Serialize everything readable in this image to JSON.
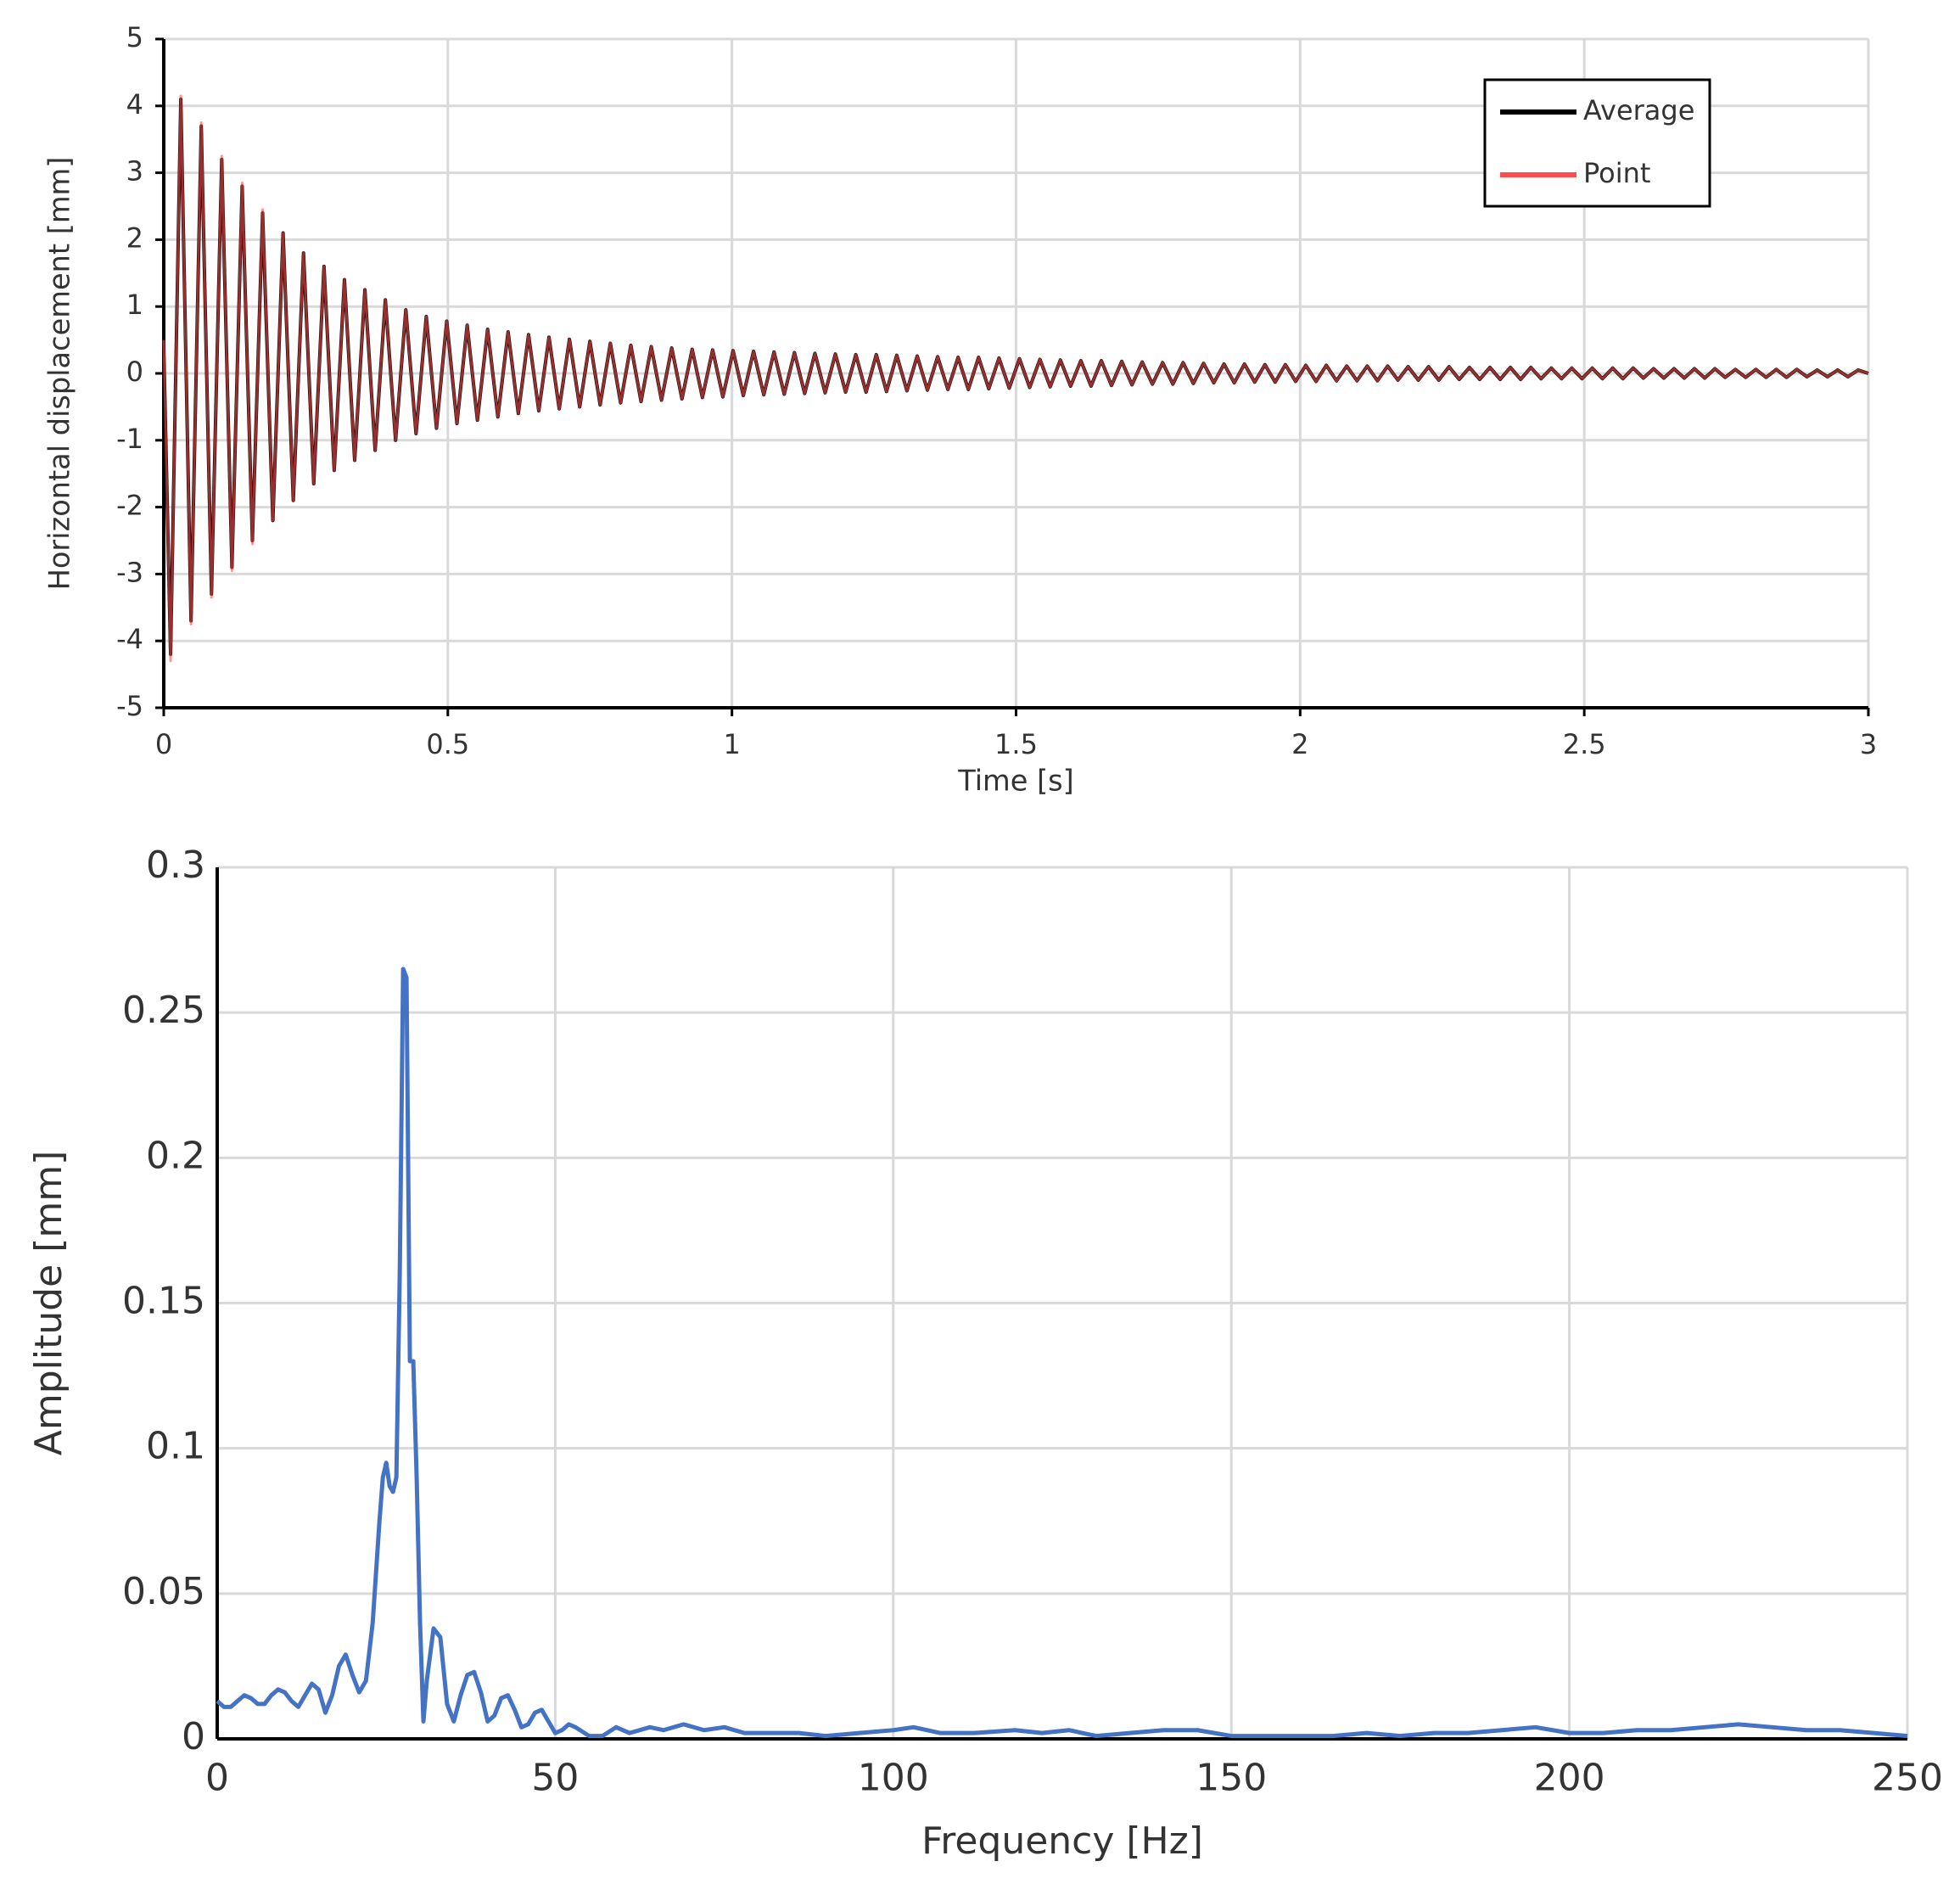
{
  "chart_data": [
    {
      "type": "line",
      "x_label": "Time [s]",
      "y_label": "Horizontal displacement [mm]",
      "xlim": [
        0,
        3
      ],
      "ylim": [
        -5,
        5
      ],
      "xticks": [
        0,
        0.5,
        1,
        1.5,
        2,
        2.5,
        3
      ],
      "yticks": [
        -5,
        -4,
        -3,
        -2,
        -1,
        0,
        1,
        2,
        3,
        4,
        5
      ],
      "grid": true,
      "legend": "upper right",
      "x": [
        0,
        0.012,
        0.03,
        0.048,
        0.066,
        0.084,
        0.102,
        0.12,
        0.138,
        0.156,
        0.174,
        0.192,
        0.21,
        0.228,
        0.246,
        0.264,
        0.282,
        0.3,
        0.318,
        0.336,
        0.354,
        0.372,
        0.39,
        0.408,
        0.426,
        0.444,
        0.462,
        0.48,
        0.498,
        0.516,
        0.534,
        0.552,
        0.57,
        0.588,
        0.606,
        0.624,
        0.642,
        0.66,
        0.678,
        0.696,
        0.714,
        0.732,
        0.75,
        0.768,
        0.786,
        0.804,
        0.822,
        0.84,
        0.858,
        0.876,
        0.894,
        0.912,
        0.93,
        0.948,
        0.966,
        0.984,
        1.002,
        1.02,
        1.038,
        1.056,
        1.074,
        1.092,
        1.11,
        1.128,
        1.146,
        1.164,
        1.182,
        1.2,
        1.218,
        1.236,
        1.254,
        1.272,
        1.29,
        1.308,
        1.326,
        1.344,
        1.362,
        1.38,
        1.398,
        1.416,
        1.434,
        1.452,
        1.47,
        1.488,
        1.506,
        1.524,
        1.542,
        1.56,
        1.578,
        1.596,
        1.614,
        1.632,
        1.65,
        1.668,
        1.686,
        1.704,
        1.722,
        1.74,
        1.758,
        1.776,
        1.794,
        1.812,
        1.83,
        1.848,
        1.866,
        1.884,
        1.902,
        1.92,
        1.938,
        1.956,
        1.974,
        1.992,
        2.01,
        2.028,
        2.046,
        2.064,
        2.082,
        2.1,
        2.118,
        2.136,
        2.154,
        2.172,
        2.19,
        2.208,
        2.226,
        2.244,
        2.262,
        2.28,
        2.298,
        2.316,
        2.334,
        2.352,
        2.37,
        2.388,
        2.406,
        2.424,
        2.442,
        2.46,
        2.478,
        2.496,
        2.514,
        2.532,
        2.55,
        2.568,
        2.586,
        2.604,
        2.622,
        2.64,
        2.658,
        2.676,
        2.694,
        2.712,
        2.73,
        2.748,
        2.766,
        2.784,
        2.802,
        2.82,
        2.838,
        2.856,
        2.874,
        2.892,
        2.91,
        2.928,
        2.946,
        2.964,
        2.982,
        3
      ],
      "series": [
        {
          "name": "Average",
          "color": "#000000",
          "values": [
            0.4,
            -4.2,
            4.1,
            -3.7,
            3.7,
            -3.3,
            3.2,
            -2.9,
            2.8,
            -2.5,
            2.4,
            -2.2,
            2.1,
            -1.9,
            1.8,
            -1.65,
            1.6,
            -1.45,
            1.4,
            -1.3,
            1.25,
            -1.15,
            1.1,
            -1,
            0.95,
            -0.9,
            0.85,
            -0.82,
            0.78,
            -0.75,
            0.72,
            -0.7,
            0.66,
            -0.65,
            0.62,
            -0.6,
            0.58,
            -0.56,
            0.54,
            -0.53,
            0.51,
            -0.5,
            0.48,
            -0.47,
            0.45,
            -0.44,
            0.42,
            -0.42,
            0.4,
            -0.4,
            0.38,
            -0.38,
            0.36,
            -0.36,
            0.35,
            -0.35,
            0.34,
            -0.33,
            0.33,
            -0.32,
            0.32,
            -0.31,
            0.31,
            -0.3,
            0.3,
            -0.29,
            0.29,
            -0.28,
            0.28,
            -0.28,
            0.28,
            -0.27,
            0.27,
            -0.26,
            0.26,
            -0.25,
            0.25,
            -0.24,
            0.24,
            -0.24,
            0.24,
            -0.23,
            0.23,
            -0.22,
            0.22,
            -0.21,
            0.21,
            -0.2,
            0.2,
            -0.19,
            0.19,
            -0.19,
            0.19,
            -0.18,
            0.18,
            -0.17,
            0.17,
            -0.16,
            0.16,
            -0.16,
            0.16,
            -0.15,
            0.15,
            -0.14,
            0.14,
            -0.14,
            0.14,
            -0.13,
            0.13,
            -0.13,
            0.13,
            -0.12,
            0.12,
            -0.12,
            0.12,
            -0.11,
            0.11,
            -0.11,
            0.11,
            -0.11,
            0.11,
            -0.1,
            0.1,
            -0.1,
            0.1,
            -0.1,
            0.1,
            -0.09,
            0.09,
            -0.09,
            0.09,
            -0.09,
            0.09,
            -0.09,
            0.09,
            -0.08,
            0.08,
            -0.08,
            0.08,
            -0.08,
            0.08,
            -0.08,
            0.08,
            -0.08,
            0.08,
            -0.07,
            0.07,
            -0.07,
            0.07,
            -0.07,
            0.07,
            -0.07,
            0.07,
            -0.06,
            0.06,
            -0.06,
            0.06,
            -0.06,
            0.06,
            -0.06,
            0.06,
            -0.05,
            0.05,
            -0.05,
            0.05,
            -0.05,
            0.05,
            0
          ]
        },
        {
          "name": "Point",
          "color": "#ff4d4d",
          "values": [
            0.5,
            -4.3,
            4.15,
            -3.75,
            3.75,
            -3.35,
            3.25,
            -2.95,
            2.85,
            -2.55,
            2.45,
            -2.2,
            2.1,
            -1.9,
            1.8,
            -1.65,
            1.6,
            -1.45,
            1.4,
            -1.3,
            1.25,
            -1.15,
            1.1,
            -1,
            0.95,
            -0.9,
            0.85,
            -0.82,
            0.78,
            -0.75,
            0.72,
            -0.7,
            0.66,
            -0.65,
            0.62,
            -0.6,
            0.58,
            -0.56,
            0.54,
            -0.53,
            0.51,
            -0.5,
            0.48,
            -0.47,
            0.45,
            -0.44,
            0.42,
            -0.42,
            0.4,
            -0.4,
            0.38,
            -0.38,
            0.36,
            -0.36,
            0.35,
            -0.35,
            0.34,
            -0.33,
            0.33,
            -0.32,
            0.32,
            -0.31,
            0.31,
            -0.3,
            0.3,
            -0.29,
            0.29,
            -0.28,
            0.28,
            -0.28,
            0.28,
            -0.27,
            0.27,
            -0.26,
            0.26,
            -0.25,
            0.25,
            -0.24,
            0.24,
            -0.24,
            0.24,
            -0.23,
            0.23,
            -0.22,
            0.22,
            -0.21,
            0.21,
            -0.2,
            0.2,
            -0.19,
            0.19,
            -0.19,
            0.19,
            -0.18,
            0.18,
            -0.17,
            0.17,
            -0.16,
            0.16,
            -0.16,
            0.16,
            -0.15,
            0.15,
            -0.14,
            0.14,
            -0.14,
            0.14,
            -0.13,
            0.13,
            -0.13,
            0.13,
            -0.12,
            0.12,
            -0.12,
            0.12,
            -0.11,
            0.11,
            -0.11,
            0.11,
            -0.11,
            0.11,
            -0.1,
            0.1,
            -0.1,
            0.1,
            -0.1,
            0.1,
            -0.09,
            0.09,
            -0.09,
            0.09,
            -0.09,
            0.09,
            -0.09,
            0.09,
            -0.08,
            0.08,
            -0.08,
            0.08,
            -0.08,
            0.08,
            -0.08,
            0.08,
            -0.08,
            0.08,
            -0.07,
            0.07,
            -0.07,
            0.07,
            -0.07,
            0.07,
            -0.07,
            0.07,
            -0.06,
            0.06,
            -0.06,
            0.06,
            -0.06,
            0.06,
            -0.06,
            0.06,
            -0.05,
            0.05,
            -0.05,
            0.05,
            -0.05,
            0.05,
            0
          ]
        }
      ]
    },
    {
      "type": "line",
      "x_label": "Frequency [Hz]",
      "y_label": "Amplitude [mm]",
      "xlim": [
        0,
        250
      ],
      "ylim": [
        0,
        0.3
      ],
      "xticks": [
        0,
        50,
        100,
        150,
        200,
        250
      ],
      "yticks": [
        0,
        0.05,
        0.1,
        0.15,
        0.2,
        0.25,
        0.3
      ],
      "grid": true,
      "x": [
        0,
        1,
        2,
        3,
        4,
        5,
        6,
        7,
        8,
        9,
        10,
        11,
        12,
        13,
        14,
        15,
        16,
        17,
        18,
        19,
        20,
        21,
        22,
        23,
        24,
        24.5,
        25,
        25.5,
        26,
        26.5,
        27,
        27.5,
        28,
        28.5,
        29,
        29.5,
        30,
        30.5,
        31,
        32,
        33,
        34,
        35,
        36,
        37,
        38,
        39,
        40,
        41,
        42,
        43,
        44,
        45,
        46,
        47,
        48,
        49,
        50,
        51,
        52,
        53,
        55,
        57,
        59,
        61,
        64,
        66,
        69,
        72,
        75,
        78,
        82,
        86,
        90,
        95,
        100,
        103,
        107,
        112,
        118,
        122,
        126,
        130,
        135,
        140,
        145,
        150,
        155,
        160,
        165,
        170,
        175,
        180,
        185,
        190,
        195,
        200,
        205,
        210,
        215,
        220,
        225,
        230,
        235,
        240,
        245,
        250
      ],
      "series": [
        {
          "color": "#4472c4",
          "values": [
            0.013,
            0.011,
            0.011,
            0.013,
            0.015,
            0.014,
            0.012,
            0.012,
            0.015,
            0.017,
            0.016,
            0.013,
            0.011,
            0.015,
            0.019,
            0.017,
            0.009,
            0.015,
            0.025,
            0.029,
            0.022,
            0.016,
            0.02,
            0.04,
            0.075,
            0.09,
            0.095,
            0.087,
            0.085,
            0.09,
            0.16,
            0.265,
            0.262,
            0.13,
            0.13,
            0.09,
            0.04,
            0.006,
            0.02,
            0.038,
            0.035,
            0.012,
            0.006,
            0.015,
            0.022,
            0.023,
            0.016,
            0.006,
            0.008,
            0.014,
            0.015,
            0.01,
            0.004,
            0.005,
            0.009,
            0.01,
            0.006,
            0.002,
            0.003,
            0.005,
            0.004,
            0.001,
            0.001,
            0.004,
            0.002,
            0.004,
            0.003,
            0.005,
            0.003,
            0.004,
            0.002,
            0.002,
            0.002,
            0.001,
            0.002,
            0.003,
            0.004,
            0.002,
            0.002,
            0.003,
            0.002,
            0.003,
            0.001,
            0.002,
            0.003,
            0.003,
            0.001,
            0.001,
            0.001,
            0.001,
            0.002,
            0.001,
            0.002,
            0.002,
            0.003,
            0.004,
            0.002,
            0.002,
            0.003,
            0.003,
            0.004,
            0.005,
            0.004,
            0.003,
            0.003,
            0.002,
            0.001
          ]
        }
      ]
    }
  ]
}
